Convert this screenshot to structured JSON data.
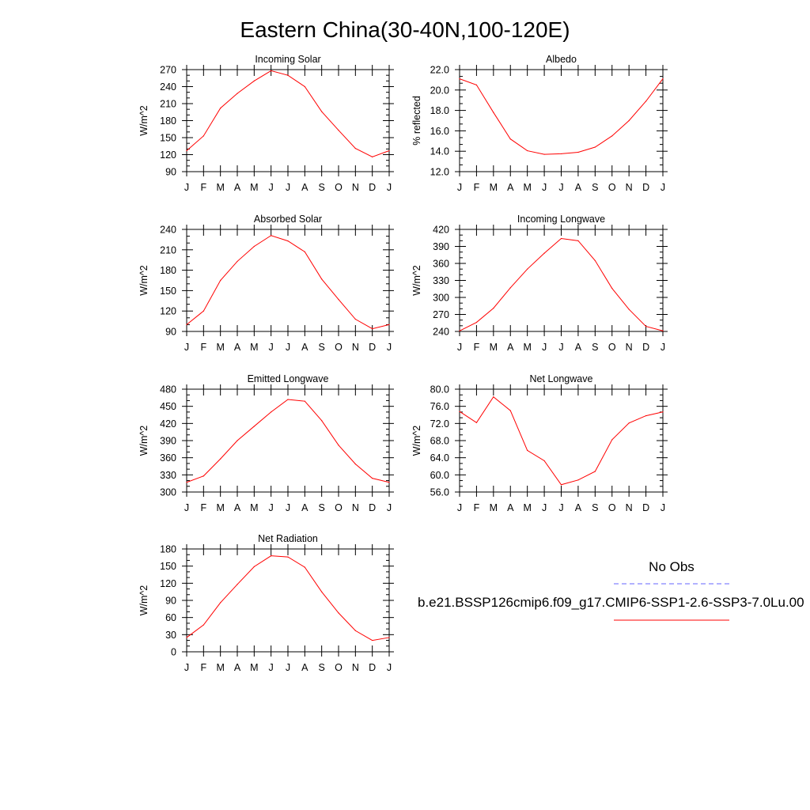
{
  "figure": {
    "title": "Eastern China(30-40N,100-120E)"
  },
  "legend": {
    "obs_label": "No Obs",
    "obs_color": "#6464ff",
    "model_label": "b.e21.BSSP126cmip6.f09_g17.CMIP6-SSP1-2.6-SSP3-7.0Lu.00",
    "model_color": "#ff0000"
  },
  "chart_data": [
    {
      "type": "line",
      "title": "Incoming Solar",
      "ylabel": "W/m^2",
      "x": [
        "J",
        "F",
        "M",
        "A",
        "M",
        "J",
        "J",
        "A",
        "S",
        "O",
        "N",
        "D",
        "J"
      ],
      "ylim": [
        90,
        270
      ],
      "yticks": [
        "90",
        "120",
        "150",
        "180",
        "210",
        "240",
        "270"
      ],
      "series": [
        {
          "values": [
            127,
            153,
            202,
            228,
            250,
            268,
            260,
            240,
            196,
            163,
            131,
            116,
            127
          ]
        }
      ]
    },
    {
      "type": "line",
      "title": "Albedo",
      "ylabel": "% reflected",
      "x": [
        "J",
        "F",
        "M",
        "A",
        "M",
        "J",
        "J",
        "A",
        "S",
        "O",
        "N",
        "D",
        "J"
      ],
      "ylim": [
        12.0,
        22.0
      ],
      "yticks": [
        "12.0",
        "14.0",
        "16.0",
        "18.0",
        "20.0",
        "22.0"
      ],
      "series": [
        {
          "values": [
            21.1,
            20.5,
            17.8,
            15.2,
            14.05,
            13.7,
            13.75,
            13.9,
            14.4,
            15.5,
            17.0,
            18.9,
            21.1
          ]
        }
      ]
    },
    {
      "type": "line",
      "title": "Absorbed Solar",
      "ylabel": "W/m^2",
      "x": [
        "J",
        "F",
        "M",
        "A",
        "M",
        "J",
        "J",
        "A",
        "S",
        "O",
        "N",
        "D",
        "J"
      ],
      "ylim": [
        90,
        240
      ],
      "yticks": [
        "90",
        "120",
        "150",
        "180",
        "210",
        "240"
      ],
      "series": [
        {
          "values": [
            100,
            120,
            165,
            193,
            215,
            231,
            223,
            207,
            167,
            137,
            108,
            94,
            100
          ]
        }
      ]
    },
    {
      "type": "line",
      "title": "Incoming Longwave",
      "ylabel": "W/m^2",
      "x": [
        "J",
        "F",
        "M",
        "A",
        "M",
        "J",
        "J",
        "A",
        "S",
        "O",
        "N",
        "D",
        "J"
      ],
      "ylim": [
        240,
        420
      ],
      "yticks": [
        "240",
        "270",
        "300",
        "330",
        "360",
        "390",
        "420"
      ],
      "series": [
        {
          "values": [
            241,
            256,
            281,
            317,
            350,
            378,
            404,
            400,
            365,
            316,
            279,
            249,
            241
          ]
        }
      ]
    },
    {
      "type": "line",
      "title": "Emitted Longwave",
      "ylabel": "W/m^2",
      "x": [
        "J",
        "F",
        "M",
        "A",
        "M",
        "J",
        "J",
        "A",
        "S",
        "O",
        "N",
        "D",
        "J"
      ],
      "ylim": [
        300,
        480
      ],
      "yticks": [
        "300",
        "330",
        "360",
        "390",
        "420",
        "450",
        "480"
      ],
      "series": [
        {
          "values": [
            317,
            328,
            358,
            390,
            415,
            440,
            462,
            459,
            425,
            382,
            349,
            324,
            317
          ]
        }
      ]
    },
    {
      "type": "line",
      "title": "Net Longwave",
      "ylabel": "W/m^2",
      "x": [
        "J",
        "F",
        "M",
        "A",
        "M",
        "J",
        "J",
        "A",
        "S",
        "O",
        "N",
        "D",
        "J"
      ],
      "ylim": [
        56.0,
        80.0
      ],
      "yticks": [
        "56.0",
        "60.0",
        "64.0",
        "68.0",
        "72.0",
        "76.0",
        "80.0"
      ],
      "series": [
        {
          "values": [
            74.8,
            72.2,
            78.2,
            75.0,
            65.7,
            63.3,
            57.7,
            58.8,
            60.8,
            68.2,
            72.1,
            73.8,
            74.7
          ]
        }
      ]
    },
    {
      "type": "line",
      "title": "Net Radiation",
      "ylabel": "W/m^2",
      "x": [
        "J",
        "F",
        "M",
        "A",
        "M",
        "J",
        "J",
        "A",
        "S",
        "O",
        "N",
        "D",
        "J"
      ],
      "ylim": [
        0,
        180
      ],
      "yticks": [
        "0",
        "30",
        "60",
        "90",
        "120",
        "150",
        "180"
      ],
      "series": [
        {
          "values": [
            25,
            47,
            86,
            118,
            149,
            168,
            166,
            148,
            105,
            68,
            37,
            20,
            25
          ]
        }
      ]
    }
  ]
}
